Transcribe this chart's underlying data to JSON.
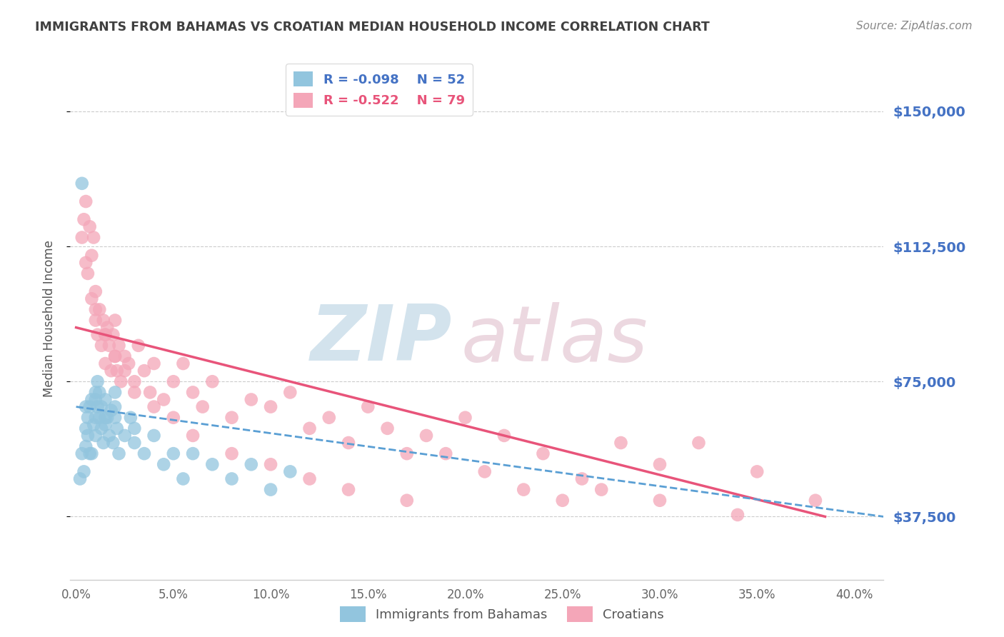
{
  "title": "IMMIGRANTS FROM BAHAMAS VS CROATIAN MEDIAN HOUSEHOLD INCOME CORRELATION CHART",
  "source": "Source: ZipAtlas.com",
  "ylabel": "Median Household Income",
  "xlabel_ticks": [
    "0.0%",
    "5.0%",
    "10.0%",
    "15.0%",
    "20.0%",
    "25.0%",
    "30.0%",
    "35.0%",
    "40.0%"
  ],
  "xlabel_vals": [
    0,
    5,
    10,
    15,
    20,
    25,
    30,
    35,
    40
  ],
  "ytick_labels": [
    "$37,500",
    "$75,000",
    "$112,500",
    "$150,000"
  ],
  "ytick_vals": [
    37500,
    75000,
    112500,
    150000
  ],
  "ylim": [
    20000,
    165000
  ],
  "xlim": [
    -0.3,
    41.5
  ],
  "legend_r1": "R = -0.098",
  "legend_n1": "N = 52",
  "legend_r2": "R = -0.522",
  "legend_n2": "N = 79",
  "color_bahamas": "#92c5de",
  "color_croatian": "#f4a6b8",
  "color_bahamas_line": "#5a9fd4",
  "color_croatian_line": "#e8547a",
  "color_axis_labels": "#4472c4",
  "color_title": "#404040",
  "color_source": "#888888",
  "bahamas_x": [
    0.2,
    0.3,
    0.4,
    0.5,
    0.5,
    0.6,
    0.6,
    0.7,
    0.8,
    0.8,
    0.9,
    1.0,
    1.0,
    1.0,
    1.1,
    1.1,
    1.2,
    1.2,
    1.3,
    1.3,
    1.4,
    1.5,
    1.5,
    1.6,
    1.7,
    1.8,
    1.9,
    2.0,
    2.0,
    2.1,
    2.2,
    2.5,
    2.8,
    3.0,
    3.5,
    4.0,
    4.5,
    5.0,
    5.5,
    6.0,
    7.0,
    8.0,
    9.0,
    10.0,
    11.0,
    0.3,
    0.5,
    0.7,
    1.0,
    1.5,
    2.0,
    3.0
  ],
  "bahamas_y": [
    48000,
    55000,
    50000,
    57000,
    62000,
    60000,
    65000,
    68000,
    55000,
    70000,
    63000,
    65000,
    70000,
    60000,
    68000,
    75000,
    65000,
    72000,
    62000,
    68000,
    58000,
    63000,
    70000,
    65000,
    60000,
    67000,
    58000,
    65000,
    72000,
    62000,
    55000,
    60000,
    65000,
    58000,
    55000,
    60000,
    52000,
    55000,
    48000,
    55000,
    52000,
    48000,
    52000,
    45000,
    50000,
    130000,
    68000,
    55000,
    72000,
    65000,
    68000,
    62000
  ],
  "croatian_x": [
    0.3,
    0.4,
    0.5,
    0.5,
    0.6,
    0.7,
    0.8,
    0.8,
    0.9,
    1.0,
    1.0,
    1.1,
    1.2,
    1.3,
    1.4,
    1.5,
    1.5,
    1.6,
    1.7,
    1.8,
    1.9,
    2.0,
    2.0,
    2.1,
    2.2,
    2.3,
    2.5,
    2.7,
    3.0,
    3.2,
    3.5,
    3.8,
    4.0,
    4.5,
    5.0,
    5.5,
    6.0,
    6.5,
    7.0,
    8.0,
    9.0,
    10.0,
    11.0,
    12.0,
    13.0,
    14.0,
    15.0,
    16.0,
    17.0,
    18.0,
    20.0,
    22.0,
    24.0,
    26.0,
    28.0,
    30.0,
    32.0,
    35.0,
    38.0,
    1.0,
    1.5,
    2.0,
    2.5,
    3.0,
    4.0,
    5.0,
    6.0,
    8.0,
    10.0,
    12.0,
    14.0,
    17.0,
    19.0,
    21.0,
    23.0,
    25.0,
    27.0,
    30.0,
    34.0
  ],
  "croatian_y": [
    115000,
    120000,
    108000,
    125000,
    105000,
    118000,
    110000,
    98000,
    115000,
    92000,
    100000,
    88000,
    95000,
    85000,
    92000,
    88000,
    80000,
    90000,
    85000,
    78000,
    88000,
    82000,
    92000,
    78000,
    85000,
    75000,
    82000,
    80000,
    75000,
    85000,
    78000,
    72000,
    80000,
    70000,
    75000,
    80000,
    72000,
    68000,
    75000,
    65000,
    70000,
    68000,
    72000,
    62000,
    65000,
    58000,
    68000,
    62000,
    55000,
    60000,
    65000,
    60000,
    55000,
    48000,
    58000,
    52000,
    58000,
    50000,
    42000,
    95000,
    88000,
    82000,
    78000,
    72000,
    68000,
    65000,
    60000,
    55000,
    52000,
    48000,
    45000,
    42000,
    55000,
    50000,
    45000,
    42000,
    45000,
    42000,
    38000
  ]
}
